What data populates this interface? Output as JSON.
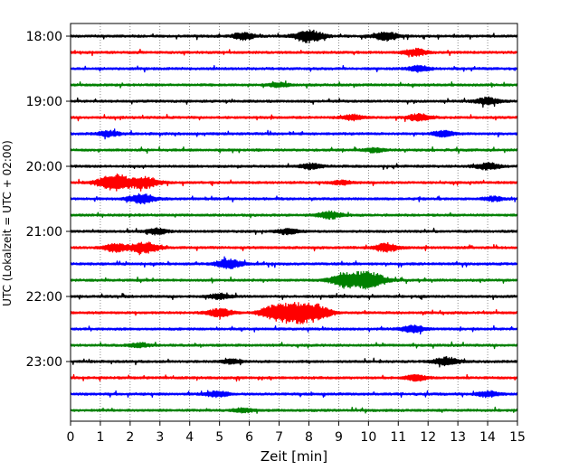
{
  "chart_data": {
    "type": "line",
    "title": "",
    "xlabel": "Zeit  [min]",
    "ylabel": "UTC (Lokalzeit = UTC + 02:00)",
    "xlim": [
      0,
      15
    ],
    "xticks": [
      "0",
      "1",
      "2",
      "3",
      "4",
      "5",
      "6",
      "7",
      "8",
      "9",
      "10",
      "11",
      "12",
      "13",
      "14",
      "15"
    ],
    "yticks": [
      {
        "label": "18:00",
        "trace": 0
      },
      {
        "label": "19:00",
        "trace": 4
      },
      {
        "label": "20:00",
        "trace": 8
      },
      {
        "label": "21:00",
        "trace": 12
      },
      {
        "label": "22:00",
        "trace": 16
      },
      {
        "label": "23:00",
        "trace": 20
      }
    ],
    "grid": "vertical dotted at each minute",
    "trace_colors": [
      "#000000",
      "#ff0000",
      "#0000ff",
      "#008000"
    ],
    "trace_interval_minutes": 15,
    "traces": [
      {
        "start": "18:00",
        "color": "#000000",
        "events": [
          {
            "t": 5.8,
            "amp": 0.5
          },
          {
            "t": 8.0,
            "amp": 0.9
          },
          {
            "t": 10.6,
            "amp": 0.6
          }
        ]
      },
      {
        "start": "18:15",
        "color": "#ff0000",
        "events": [
          {
            "t": 11.6,
            "amp": 0.5
          }
        ]
      },
      {
        "start": "18:30",
        "color": "#0000ff",
        "events": [
          {
            "t": 11.7,
            "amp": 0.4
          }
        ]
      },
      {
        "start": "18:45",
        "color": "#008000",
        "events": [
          {
            "t": 7.0,
            "amp": 0.3
          }
        ]
      },
      {
        "start": "19:00",
        "color": "#000000",
        "events": [
          {
            "t": 14.0,
            "amp": 0.5
          }
        ]
      },
      {
        "start": "19:15",
        "color": "#ff0000",
        "events": [
          {
            "t": 9.5,
            "amp": 0.4
          },
          {
            "t": 11.7,
            "amp": 0.5
          }
        ]
      },
      {
        "start": "19:30",
        "color": "#0000ff",
        "events": [
          {
            "t": 1.3,
            "amp": 0.4
          },
          {
            "t": 12.5,
            "amp": 0.4
          }
        ]
      },
      {
        "start": "19:45",
        "color": "#008000",
        "events": [
          {
            "t": 10.2,
            "amp": 0.3
          }
        ]
      },
      {
        "start": "20:00",
        "color": "#000000",
        "events": [
          {
            "t": 8.1,
            "amp": 0.4
          },
          {
            "t": 14.0,
            "amp": 0.5
          }
        ]
      },
      {
        "start": "20:15",
        "color": "#ff0000",
        "events": [
          {
            "t": 1.5,
            "amp": 1.2
          },
          {
            "t": 2.5,
            "amp": 0.8
          },
          {
            "t": 9.1,
            "amp": 0.3
          }
        ]
      },
      {
        "start": "20:30",
        "color": "#0000ff",
        "events": [
          {
            "t": 2.4,
            "amp": 0.7
          },
          {
            "t": 14.2,
            "amp": 0.3
          }
        ]
      },
      {
        "start": "20:45",
        "color": "#008000",
        "events": [
          {
            "t": 8.7,
            "amp": 0.5
          }
        ]
      },
      {
        "start": "21:00",
        "color": "#000000",
        "events": [
          {
            "t": 2.9,
            "amp": 0.4
          },
          {
            "t": 7.3,
            "amp": 0.4
          }
        ]
      },
      {
        "start": "21:15",
        "color": "#ff0000",
        "events": [
          {
            "t": 1.5,
            "amp": 0.6
          },
          {
            "t": 2.5,
            "amp": 0.8
          },
          {
            "t": 10.6,
            "amp": 0.6
          }
        ]
      },
      {
        "start": "21:30",
        "color": "#0000ff",
        "events": [
          {
            "t": 5.3,
            "amp": 0.7
          }
        ]
      },
      {
        "start": "21:45",
        "color": "#008000",
        "events": [
          {
            "t": 9.2,
            "amp": 0.9
          },
          {
            "t": 10.0,
            "amp": 1.2
          }
        ]
      },
      {
        "start": "22:00",
        "color": "#000000",
        "events": [
          {
            "t": 5.0,
            "amp": 0.4
          }
        ]
      },
      {
        "start": "22:15",
        "color": "#ff0000",
        "events": [
          {
            "t": 5.0,
            "amp": 0.6
          },
          {
            "t": 6.8,
            "amp": 0.8
          },
          {
            "t": 7.6,
            "amp": 1.5
          },
          {
            "t": 8.3,
            "amp": 0.8
          }
        ]
      },
      {
        "start": "22:30",
        "color": "#0000ff",
        "events": [
          {
            "t": 11.5,
            "amp": 0.5
          }
        ]
      },
      {
        "start": "22:45",
        "color": "#008000",
        "events": [
          {
            "t": 2.3,
            "amp": 0.3
          }
        ]
      },
      {
        "start": "23:00",
        "color": "#000000",
        "events": [
          {
            "t": 5.4,
            "amp": 0.3
          },
          {
            "t": 12.6,
            "amp": 0.6
          }
        ]
      },
      {
        "start": "23:15",
        "color": "#ff0000",
        "events": [
          {
            "t": 11.6,
            "amp": 0.4
          }
        ]
      },
      {
        "start": "23:30",
        "color": "#0000ff",
        "events": [
          {
            "t": 4.9,
            "amp": 0.4
          },
          {
            "t": 14.0,
            "amp": 0.4
          }
        ]
      },
      {
        "start": "23:45",
        "color": "#008000",
        "events": [
          {
            "t": 5.8,
            "amp": 0.3
          }
        ]
      }
    ]
  }
}
